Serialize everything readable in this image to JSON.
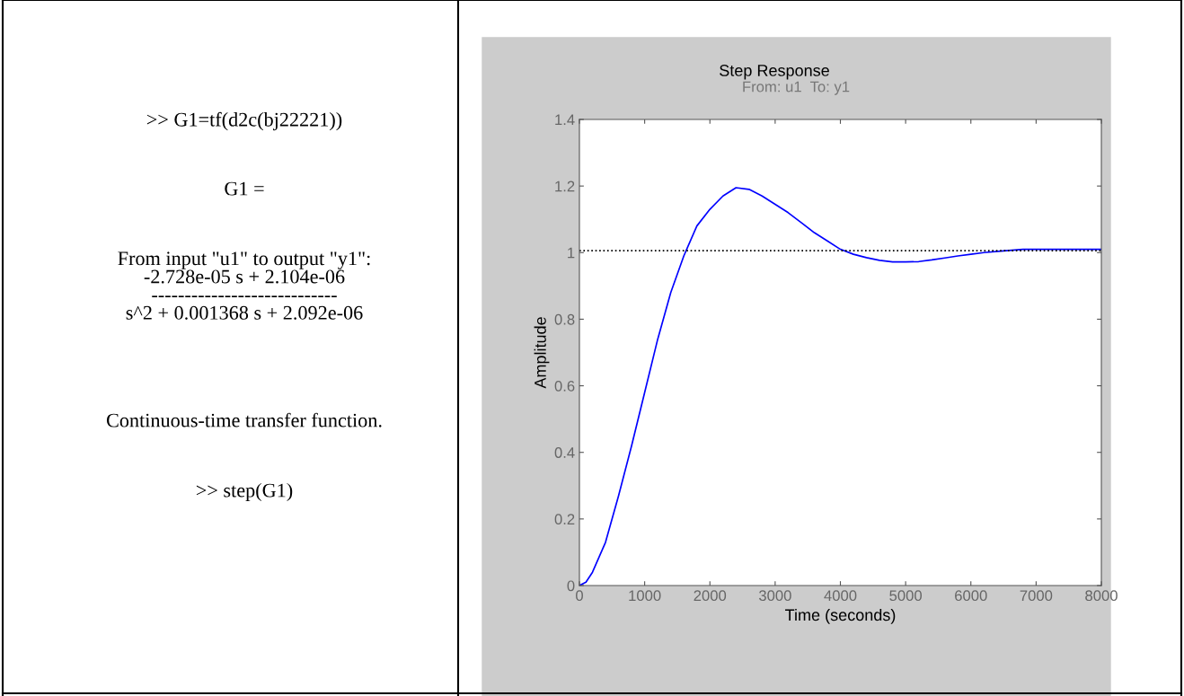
{
  "chart_data": {
    "type": "line",
    "title": "Step Response",
    "subtitle": "From: u1  To: y1",
    "xlabel": "Time (seconds)",
    "ylabel": "Amplitude",
    "annotations": [
      ">> G1=tf(d2c(bj22221))",
      "G1 =",
      "From input \"u1\" to output \"y1\":\n-2.728e-05 s + 2.104e-06\n----------------------------\ns^2 + 0.001368 s + 2.092e-06",
      "Continuous-time transfer function.",
      ">> step(G1)"
    ],
    "x": [
      0,
      100,
      200,
      400,
      600,
      800,
      1000,
      1200,
      1400,
      1600,
      1800,
      2000,
      2200,
      2400,
      2600,
      2800,
      3000,
      3200,
      3400,
      3600,
      3800,
      4000,
      4200,
      4400,
      4600,
      4800,
      5000,
      5200,
      5400,
      5600,
      5800,
      6000,
      6200,
      6500,
      6800,
      7200,
      8000
    ],
    "series": [
      {
        "color": "#0000ff",
        "values": [
          0,
          0.01,
          0.04,
          0.13,
          0.27,
          0.42,
          0.58,
          0.74,
          0.88,
          0.99,
          1.08,
          1.13,
          1.17,
          1.195,
          1.19,
          1.17,
          1.145,
          1.12,
          1.09,
          1.06,
          1.035,
          1.01,
          0.995,
          0.985,
          0.977,
          0.972,
          0.972,
          0.973,
          0.978,
          0.984,
          0.99,
          0.995,
          1.0,
          1.005,
          1.01,
          1.01,
          1.01
        ]
      }
    ],
    "xlim": [
      0,
      8000
    ],
    "xticks": [
      0,
      1000,
      2000,
      3000,
      4000,
      5000,
      6000,
      7000,
      8000
    ],
    "ylim": [
      0,
      1.4
    ],
    "yticks": [
      0,
      0.2,
      0.4,
      0.6,
      0.8,
      1,
      1.2,
      1.4
    ],
    "ref_lines": [
      {
        "axis": "y",
        "value": 1.006,
        "color": "#000000",
        "line_style": "dotted"
      }
    ],
    "grid": false,
    "legend": false
  }
}
